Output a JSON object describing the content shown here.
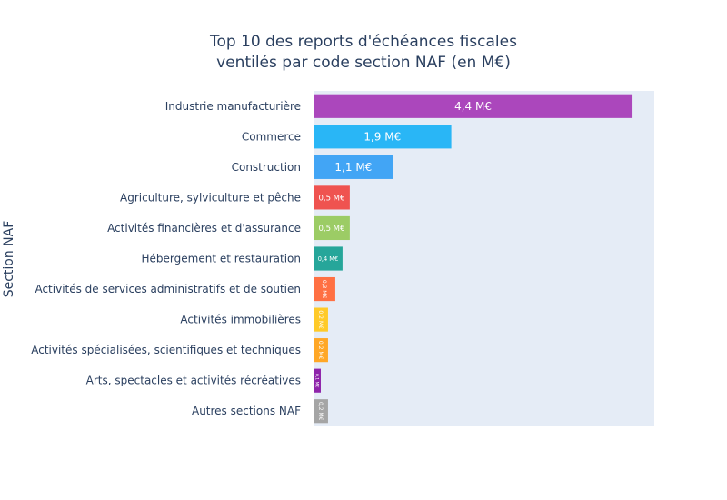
{
  "chart_data": {
    "type": "bar",
    "orientation": "horizontal",
    "title_lines": [
      "Top 10 des reports d'échéances fiscales",
      "ventilés par code section NAF (en M€)"
    ],
    "xlabel": "",
    "ylabel": "Section NAF",
    "xlim": [
      0,
      4.7
    ],
    "categories": [
      "Industrie manufacturière",
      "Commerce",
      "Construction",
      "Agriculture, sylviculture et pêche",
      "Activités financières et d'assurance",
      "Hébergement et restauration",
      "Activités de services administratifs et de soutien",
      "Activités immobilières",
      "Activités spécialisées, scientifiques et techniques",
      "Arts, spectacles et activités récréatives",
      "Autres sections NAF"
    ],
    "values": [
      4.4,
      1.9,
      1.1,
      0.5,
      0.5,
      0.4,
      0.3,
      0.2,
      0.2,
      0.1,
      0.2
    ],
    "data_labels": [
      "4,4 M€",
      "1,9 M€",
      "1,1 M€",
      "0,5 M€",
      "0,5 M€",
      "0,4 M€",
      "0,3 M€",
      "0,2 M€",
      "0,2 M€",
      "0,1 M€",
      "0,2 M€"
    ],
    "colors": [
      "#ab47bc",
      "#29b6f6",
      "#42a5f5",
      "#ef5350",
      "#9ccc65",
      "#26a69a",
      "#ff7043",
      "#ffca28",
      "#ffa726",
      "#8e24aa",
      "#a5a5a5"
    ],
    "plot_background": "#e5ecf6",
    "grid": false,
    "legend": "none"
  }
}
